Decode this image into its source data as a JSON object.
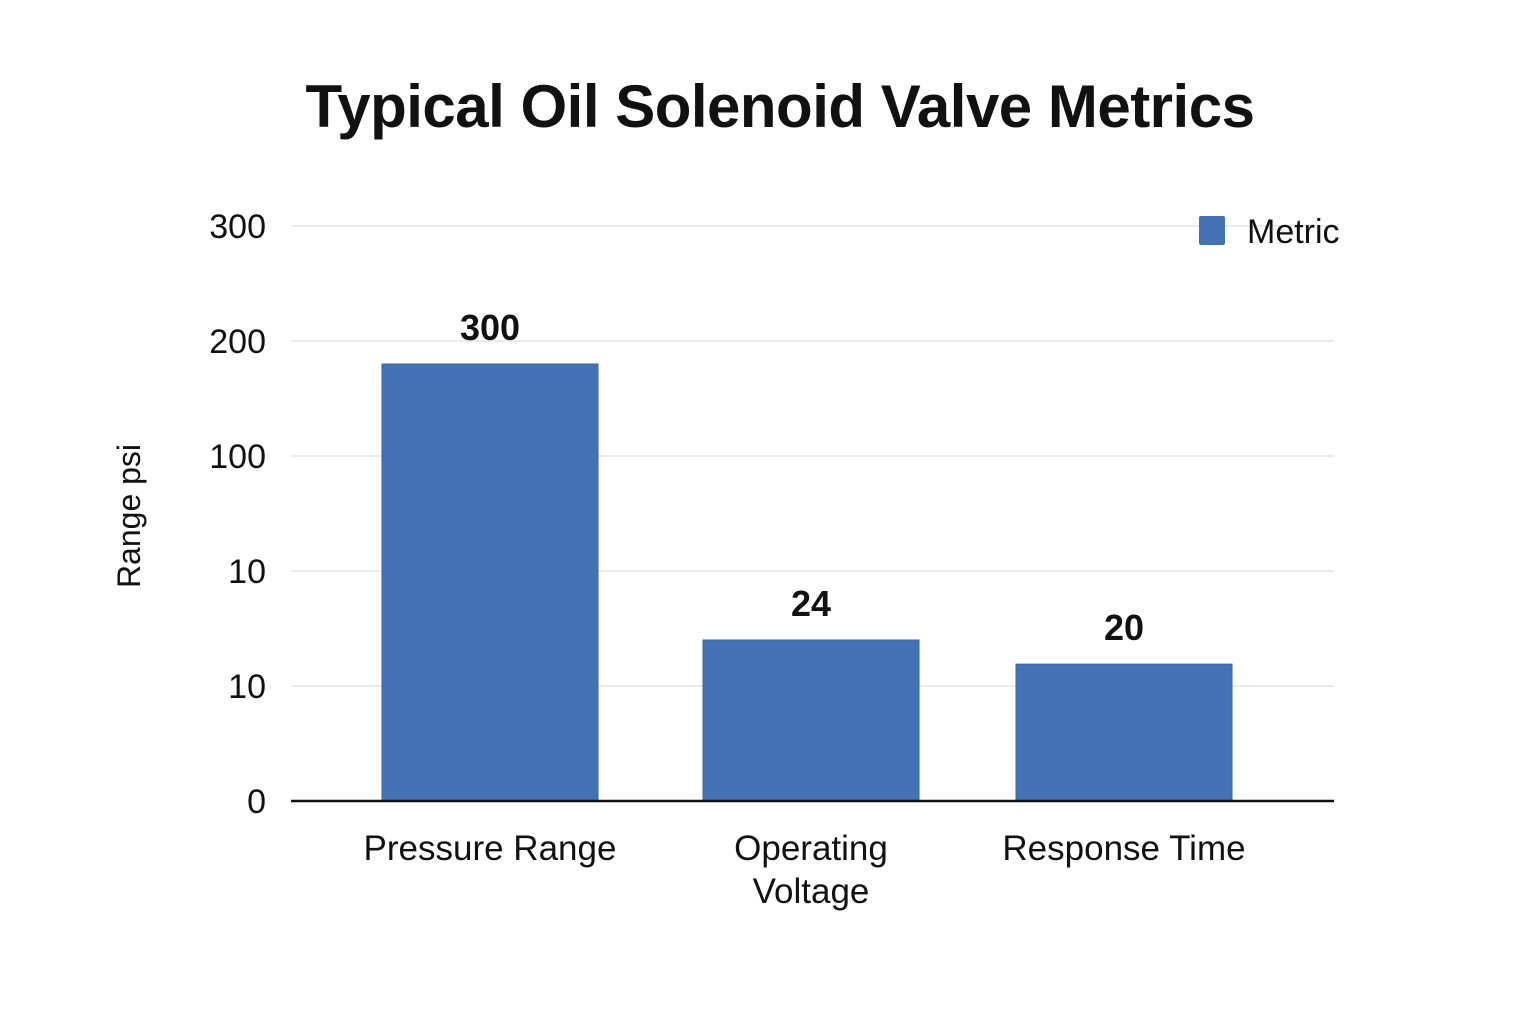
{
  "chart_data": {
    "type": "bar",
    "title": "Typical Oil Solenoid Valve Metrics",
    "xlabel": "",
    "ylabel": "Range psi",
    "categories": [
      [
        "Pressure Range"
      ],
      [
        "Operating",
        "Voltage"
      ],
      [
        "Response Time"
      ]
    ],
    "series": [
      {
        "name": "Metric",
        "color": "#4472B4",
        "values": [
          300,
          24,
          20
        ],
        "data_labels": [
          "300",
          "24",
          "20"
        ]
      }
    ],
    "y_tick_labels": [
      "0",
      "10",
      "10",
      "100",
      "200",
      "300"
    ],
    "y_tick_values": [
      0,
      1,
      2,
      3,
      4,
      5
    ],
    "bar_positions_on_axis": [
      3.8,
      1.4,
      1.19
    ],
    "ylim": [
      0,
      5
    ],
    "grid": true,
    "legend_position": "top-right"
  }
}
